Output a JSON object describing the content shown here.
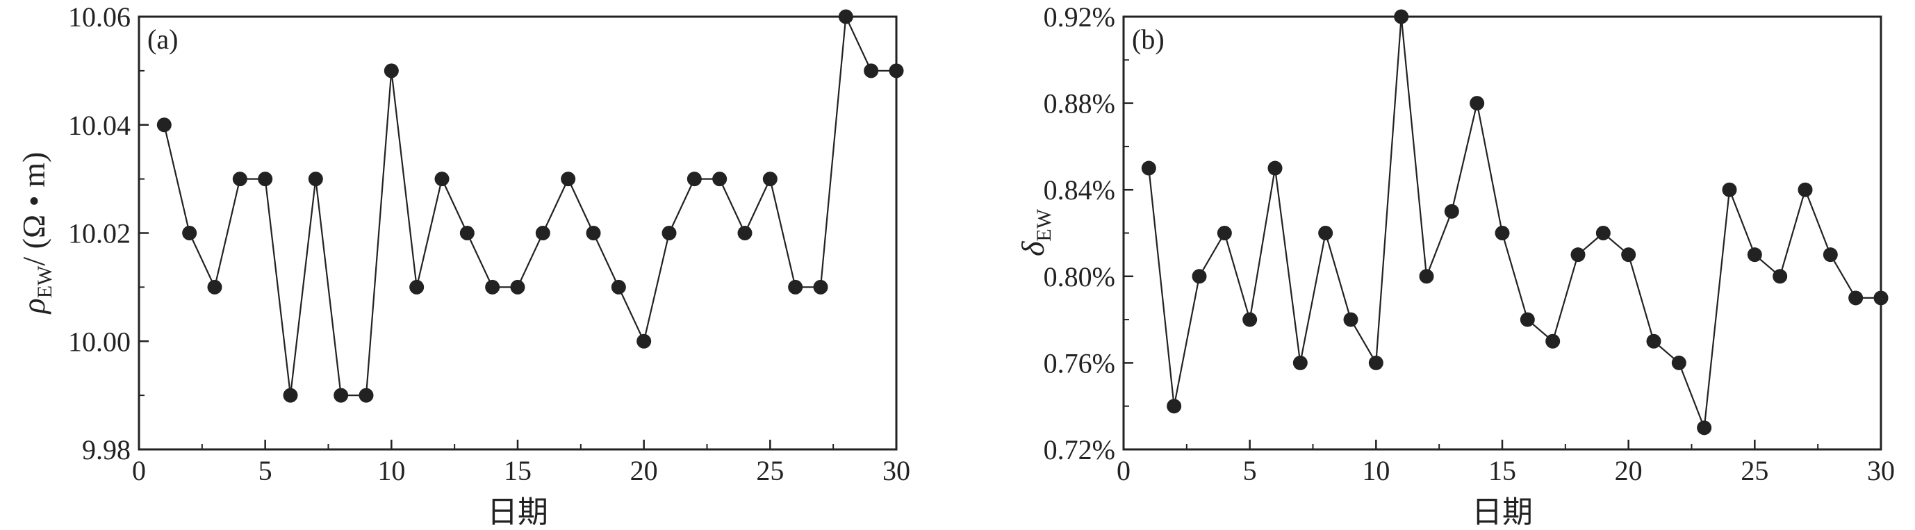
{
  "chart_data": [
    {
      "type": "line",
      "panel_label": "(a)",
      "xlabel": "日期",
      "ylabel": {
        "symbol": "ρ",
        "subscript": "EW",
        "unit": "/ (Ω • m)"
      },
      "xlim": [
        0,
        30
      ],
      "ylim": [
        9.98,
        10.06
      ],
      "x_ticks": [
        "0",
        "5",
        "10",
        "15",
        "20",
        "25",
        "30"
      ],
      "y_ticks": [
        "9.98",
        "10.00",
        "10.02",
        "10.04",
        "10.06"
      ],
      "x": [
        1,
        2,
        3,
        4,
        5,
        6,
        7,
        8,
        9,
        10,
        11,
        12,
        13,
        14,
        15,
        16,
        17,
        18,
        19,
        20,
        21,
        22,
        23,
        24,
        25,
        26,
        27,
        28,
        29,
        30
      ],
      "values": [
        10.04,
        10.02,
        10.01,
        10.03,
        10.03,
        9.99,
        10.03,
        9.99,
        9.99,
        10.05,
        10.01,
        10.03,
        10.02,
        10.01,
        10.01,
        10.02,
        10.03,
        10.02,
        10.01,
        10.0,
        10.02,
        10.03,
        10.03,
        10.02,
        10.03,
        10.01,
        10.01,
        10.06,
        10.05,
        10.05
      ],
      "marker_color": "#222222",
      "line_color": "#222222"
    },
    {
      "type": "line",
      "panel_label": "(b)",
      "xlabel": "日期",
      "ylabel": {
        "symbol": "δ",
        "subscript": "EW",
        "unit": ""
      },
      "xlim": [
        0,
        30
      ],
      "ylim": [
        0.72,
        0.92
      ],
      "x_ticks": [
        "0",
        "5",
        "10",
        "15",
        "20",
        "25",
        "30"
      ],
      "y_ticks": [
        "0.72%",
        "0.76%",
        "0.80%",
        "0.84%",
        "0.88%",
        "0.92%"
      ],
      "x": [
        1,
        2,
        3,
        4,
        5,
        6,
        7,
        8,
        9,
        10,
        11,
        12,
        13,
        14,
        15,
        16,
        17,
        18,
        19,
        20,
        21,
        22,
        23,
        24,
        25,
        26,
        27,
        28,
        29,
        30
      ],
      "values": [
        0.85,
        0.74,
        0.8,
        0.82,
        0.78,
        0.85,
        0.76,
        0.82,
        0.78,
        0.76,
        0.92,
        0.8,
        0.83,
        0.88,
        0.82,
        0.78,
        0.77,
        0.81,
        0.82,
        0.81,
        0.77,
        0.76,
        0.73,
        0.84,
        0.81,
        0.8,
        0.84,
        0.81,
        0.79,
        0.79
      ],
      "marker_color": "#222222",
      "line_color": "#222222"
    }
  ]
}
